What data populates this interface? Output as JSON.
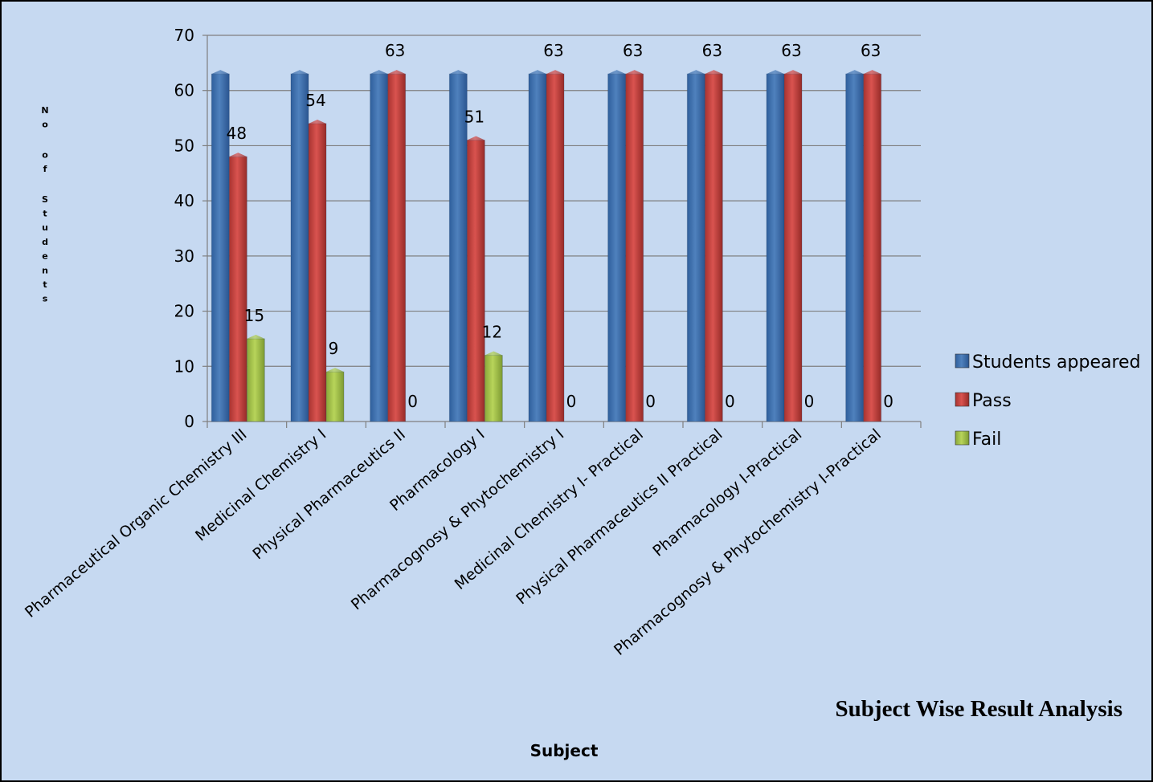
{
  "chart_data": {
    "type": "bar",
    "title": "Subject Wise Result Analysis",
    "xlabel": "Subject",
    "ylabel": "No of Students",
    "ylim": [
      0,
      70
    ],
    "yticks": [
      0,
      10,
      20,
      30,
      40,
      50,
      60,
      70
    ],
    "grid": true,
    "legend_position": "right",
    "categories": [
      "Pharmaceutical Organic Chemistry III",
      "Medicinal Chemistry I",
      "Physical Pharmaceutics II",
      "Pharmacology I",
      "Pharmacognosy & Phytochemistry I",
      "Medicinal Chemistry I- Practical",
      "Physical Pharmaceutics II Practical",
      "Pharmacology I-Practical",
      "Pharmacognosy & Phytochemistry I-Practical"
    ],
    "series": [
      {
        "name": "Students appeared",
        "color": "#4f81bd",
        "values": [
          63,
          63,
          63,
          63,
          63,
          63,
          63,
          63,
          63
        ]
      },
      {
        "name": "Pass",
        "color": "#c0504d",
        "values": [
          48,
          54,
          63,
          51,
          63,
          63,
          63,
          63,
          63
        ]
      },
      {
        "name": "Fail",
        "color": "#9bbb59",
        "values": [
          15,
          9,
          0,
          12,
          0,
          0,
          0,
          0,
          0
        ]
      }
    ],
    "data_labels": {
      "Pass": [
        "48",
        "54",
        "63",
        "51",
        "63",
        "63",
        "63",
        "63",
        "63"
      ],
      "Fail": [
        "15",
        "9",
        "0",
        "12",
        "0",
        "0",
        "0",
        "0",
        "0"
      ]
    }
  }
}
